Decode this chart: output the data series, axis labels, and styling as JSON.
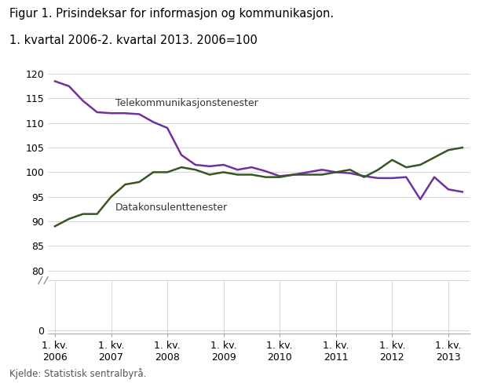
{
  "title_line1": "Figur 1. Prisindeksar for informasjon og kommunikasjon.",
  "title_line2": "1. kvartal 2006-2. kvartal 2013. 2006=100",
  "source": "Kjelde: Statistisk sentralbyrå.",
  "label_tele": "Telekommunikasjonstenester",
  "label_data": "Datakonsulenttenester",
  "color_tele": "#7030a0",
  "color_data": "#375623",
  "linewidth": 1.8,
  "tele": [
    118.5,
    117.5,
    114.5,
    112.2,
    112.0,
    112.0,
    111.8,
    110.2,
    109.0,
    103.5,
    101.5,
    101.2,
    101.5,
    100.5,
    101.0,
    100.2,
    99.2,
    99.5,
    100.0,
    100.5,
    100.0,
    99.8,
    99.2,
    98.8,
    98.8,
    99.0,
    94.5,
    99.0,
    96.5,
    96.0
  ],
  "data": [
    89.0,
    90.5,
    91.5,
    91.5,
    95.0,
    97.5,
    98.0,
    100.0,
    100.0,
    101.0,
    100.5,
    99.5,
    100.0,
    99.5,
    99.5,
    99.0,
    99.0,
    99.5,
    99.5,
    99.5,
    100.0,
    100.5,
    99.0,
    100.5,
    102.5,
    101.0,
    101.5,
    103.0,
    104.5,
    105.0
  ],
  "xtick_positions": [
    0,
    4,
    8,
    12,
    16,
    20,
    24,
    28
  ],
  "xtick_labels": [
    "1. kv.\n2006",
    "1. kv.\n2007",
    "1. kv.\n2008",
    "1. kv.\n2009",
    "1. kv.\n2010",
    "1. kv.\n2011",
    "1. kv.\n2012",
    "1. kv.\n2013"
  ],
  "yticks_top": [
    80,
    85,
    90,
    95,
    100,
    105,
    110,
    115,
    120
  ],
  "yticks_bottom": [
    0
  ],
  "background_color": "#ffffff",
  "grid_color": "#d0d0d0",
  "n_quarters": 30
}
